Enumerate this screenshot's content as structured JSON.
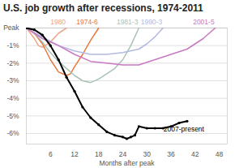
{
  "chart_data": {
    "type": "line",
    "title": "U.S. job growth after recessions, 1974-2011",
    "x_label": "Months after peak",
    "xlim": [
      0,
      50
    ],
    "xticks": [
      6,
      12,
      18,
      24,
      30,
      36,
      42,
      48
    ],
    "ylim": [
      -6.6,
      0
    ],
    "yticks": [
      {
        "value": 0,
        "label": "Peak"
      },
      {
        "value": -1,
        "label": "-1%"
      },
      {
        "value": -2,
        "label": "-2%"
      },
      {
        "value": -3,
        "label": "-3%"
      },
      {
        "value": -4,
        "label": "-4%"
      },
      {
        "value": -5,
        "label": "-5%"
      },
      {
        "value": -6,
        "label": "-6%"
      }
    ],
    "grid": "y",
    "series": [
      {
        "name": "1980",
        "color": "#eda487",
        "x": [
          0,
          2,
          3,
          4,
          6,
          8,
          10
        ],
        "values": [
          0,
          -0.6,
          -1.0,
          -1.1,
          -0.8,
          -0.3,
          0
        ]
      },
      {
        "name": "1974-6",
        "color": "#e8783c",
        "x": [
          0,
          2,
          4,
          6,
          8,
          10,
          11,
          12,
          14,
          16,
          18
        ],
        "values": [
          0,
          -0.3,
          -0.9,
          -1.8,
          -2.5,
          -2.7,
          -2.6,
          -2.2,
          -1.5,
          -0.7,
          0
        ]
      },
      {
        "name": "1981-3",
        "color": "#a9c2b3",
        "x": [
          0,
          2,
          4,
          6,
          8,
          10,
          12,
          14,
          16,
          18,
          20,
          22,
          24,
          26,
          28
        ],
        "values": [
          0,
          -0.3,
          -0.8,
          -1.4,
          -1.9,
          -2.3,
          -2.7,
          -3.0,
          -3.1,
          -2.9,
          -2.6,
          -2.3,
          -1.8,
          -1.0,
          0
        ]
      },
      {
        "name": "1990-3",
        "color": "#b3b9e2",
        "x": [
          0,
          4,
          8,
          12,
          16,
          20,
          24,
          28,
          30,
          32,
          34
        ],
        "values": [
          0,
          -0.5,
          -1.0,
          -1.3,
          -1.5,
          -1.5,
          -1.4,
          -1.2,
          -0.9,
          -0.5,
          0
        ]
      },
      {
        "name": "2001-5",
        "color": "#c978c2",
        "x": [
          0,
          4,
          8,
          12,
          16,
          20,
          24,
          28,
          32,
          36,
          40,
          44,
          47
        ],
        "values": [
          0,
          -0.6,
          -1.0,
          -1.5,
          -1.9,
          -2.0,
          -2.1,
          -2.1,
          -1.8,
          -1.5,
          -1.2,
          -0.6,
          0
        ]
      },
      {
        "name": "2007-present",
        "color": "#000000",
        "marker": "circle",
        "x": [
          0,
          2,
          4,
          6,
          8,
          10,
          12,
          14,
          16,
          18,
          20,
          22,
          24,
          25,
          26,
          27,
          28,
          30,
          32,
          34,
          36,
          38,
          40
        ],
        "values": [
          0,
          -0.1,
          -0.4,
          -1.0,
          -1.8,
          -2.8,
          -3.6,
          -4.5,
          -5.1,
          -5.5,
          -5.9,
          -6.1,
          -6.2,
          -6.3,
          -6.2,
          -6.1,
          -5.6,
          -5.7,
          -5.7,
          -5.7,
          -5.6,
          -5.4,
          -5.3
        ]
      }
    ]
  }
}
